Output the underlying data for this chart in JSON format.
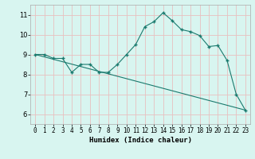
{
  "xlabel": "Humidex (Indice chaleur)",
  "bg_color": "#d8f5f0",
  "grid_color": "#e8c0c0",
  "line_color": "#1a7a6e",
  "x_ticks": [
    0,
    1,
    2,
    3,
    4,
    5,
    6,
    7,
    8,
    9,
    10,
    11,
    12,
    13,
    14,
    15,
    16,
    17,
    18,
    19,
    20,
    21,
    22,
    23
  ],
  "ylim": [
    5.5,
    11.5
  ],
  "xlim": [
    -0.5,
    23.5
  ],
  "yticks": [
    6,
    7,
    8,
    9,
    10,
    11
  ],
  "line1_x": [
    0,
    1,
    2,
    3,
    4,
    5,
    6,
    7,
    8,
    9,
    10,
    11,
    12,
    13,
    14,
    15,
    16,
    17,
    18,
    19,
    20,
    21,
    22,
    23
  ],
  "line1_y": [
    9.0,
    9.0,
    8.8,
    8.8,
    8.1,
    8.5,
    8.5,
    8.1,
    8.1,
    8.5,
    9.0,
    9.5,
    10.4,
    10.65,
    11.1,
    10.7,
    10.25,
    10.15,
    9.95,
    9.4,
    9.45,
    8.7,
    7.0,
    6.2
  ],
  "line2_x": [
    0,
    23
  ],
  "line2_y": [
    9.0,
    6.2
  ],
  "xlabel_fontsize": 6.5,
  "tick_fontsize": 5.5,
  "ytick_fontsize": 6.0
}
